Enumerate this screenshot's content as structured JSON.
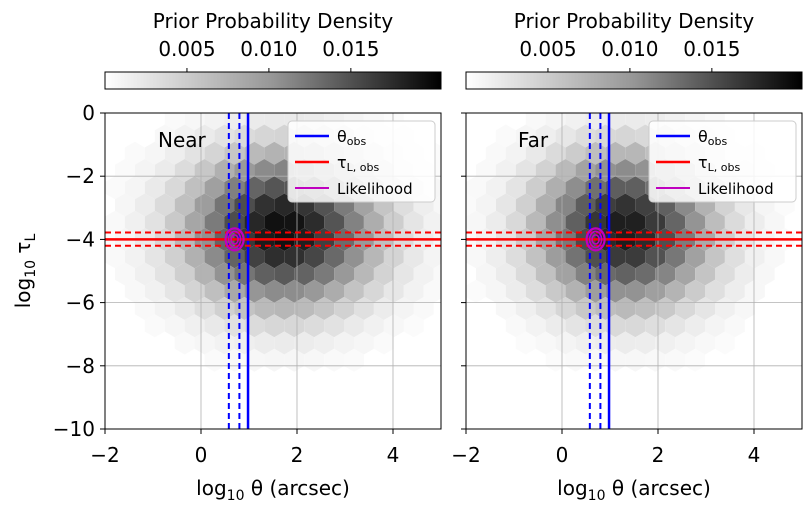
{
  "colorbar": {
    "label": "Prior Probability Density",
    "ticks": [
      "0.005",
      "0.010",
      "0.015"
    ],
    "tick_values": [
      0.005,
      0.01,
      0.015
    ],
    "range": [
      0,
      0.0205
    ],
    "colormap": "Greys"
  },
  "shared_axes": {
    "xlabel_prefix": "log",
    "xlabel_sub": "10",
    "xlabel_suffix": " θ (arcsec)",
    "ylabel_prefix": "log",
    "ylabel_sub": "10",
    "ylabel_symbol": "τ",
    "ylabel_symbol_sub": "L"
  },
  "legend": {
    "items": [
      {
        "label": "θ",
        "sub": "obs",
        "color": "#0000ff"
      },
      {
        "label": "τ",
        "sub": "L, obs",
        "color": "#ff0000"
      },
      {
        "label": "Likelihood",
        "sub": "",
        "color": "#bf00bf"
      }
    ]
  },
  "chart_data": [
    {
      "type": "heatmap",
      "subtype": "hexbin",
      "panel_label": "Near",
      "xlim": [
        -2,
        5
      ],
      "ylim": [
        -10,
        0
      ],
      "xticks": [
        "−2",
        "0",
        "2",
        "4"
      ],
      "xtick_values": [
        -2,
        0,
        2,
        4
      ],
      "yticks": [
        "0",
        "−2",
        "−4",
        "−6",
        "−8",
        "−10"
      ],
      "ytick_values": [
        0,
        -2,
        -4,
        -6,
        -8,
        -10
      ],
      "grid": true,
      "legend_position": "top-right",
      "density_peak": {
        "x": 1.7,
        "y": -3.7,
        "value": 0.0195
      },
      "density_spread": {
        "sx": 1.3,
        "sy": 1.6
      },
      "theta_obs": {
        "value": 0.98,
        "lower": 0.58,
        "upper": 0.8,
        "color": "#0000ff"
      },
      "tau_obs": {
        "value": -4.0,
        "lower": -4.2,
        "upper": -3.78,
        "color": "#ff0000"
      },
      "likelihood": {
        "x": 0.7,
        "y": -4.0,
        "color": "#bf00bf"
      }
    },
    {
      "type": "heatmap",
      "subtype": "hexbin",
      "panel_label": "Far",
      "xlim": [
        -2,
        5
      ],
      "ylim": [
        -10,
        0
      ],
      "xticks": [
        "−2",
        "0",
        "2",
        "4"
      ],
      "xtick_values": [
        -2,
        0,
        2,
        4
      ],
      "yticks": [
        "0",
        "−2",
        "−4",
        "−6",
        "−8",
        "−10"
      ],
      "ytick_values": [
        0,
        -2,
        -4,
        -6,
        -8,
        -10
      ],
      "grid": true,
      "legend_position": "top-right",
      "density_peak": {
        "x": 1.3,
        "y": -3.7,
        "value": 0.0185
      },
      "density_spread": {
        "sx": 1.2,
        "sy": 1.6
      },
      "theta_obs": {
        "value": 0.98,
        "lower": 0.58,
        "upper": 0.8,
        "color": "#0000ff"
      },
      "tau_obs": {
        "value": -4.0,
        "lower": -4.2,
        "upper": -3.78,
        "color": "#ff0000"
      },
      "likelihood": {
        "x": 0.7,
        "y": -4.0,
        "color": "#bf00bf"
      }
    }
  ]
}
